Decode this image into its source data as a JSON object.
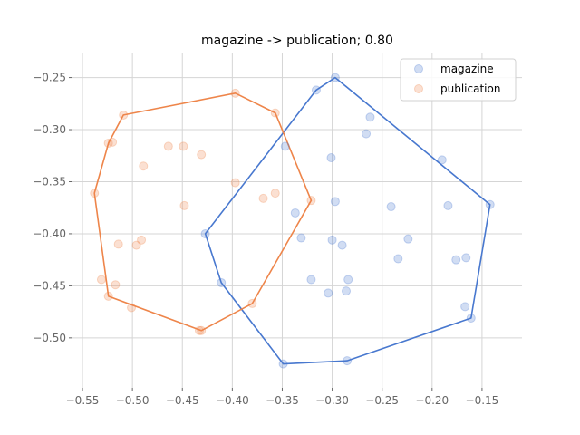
{
  "chart_data": {
    "type": "scatter",
    "title": "magazine -> publication; 0.80",
    "xlabel": "",
    "ylabel": "",
    "xlim": [
      -0.56,
      -0.11
    ],
    "ylim": [
      -0.548,
      -0.226
    ],
    "x_ticks": [
      -0.55,
      -0.5,
      -0.45,
      -0.4,
      -0.35,
      -0.3,
      -0.25,
      -0.2,
      -0.15
    ],
    "x_tick_labels": [
      "−0.55",
      "−0.50",
      "−0.45",
      "−0.40",
      "−0.35",
      "−0.30",
      "−0.25",
      "−0.20",
      "−0.15"
    ],
    "y_ticks": [
      -0.25,
      -0.3,
      -0.35,
      -0.4,
      -0.45,
      -0.5
    ],
    "y_tick_labels": [
      "−0.25",
      "−0.30",
      "−0.35",
      "−0.40",
      "−0.45",
      "−0.50"
    ],
    "grid": true,
    "legend_position": "top-right",
    "series": [
      {
        "name": "magazine",
        "color": "#4878cf",
        "points": [
          [
            -0.297,
            -0.25
          ],
          [
            -0.316,
            -0.262
          ],
          [
            -0.262,
            -0.288
          ],
          [
            -0.266,
            -0.304
          ],
          [
            -0.301,
            -0.327
          ],
          [
            -0.347,
            -0.316
          ],
          [
            -0.19,
            -0.329
          ],
          [
            -0.297,
            -0.369
          ],
          [
            -0.337,
            -0.38
          ],
          [
            -0.241,
            -0.374
          ],
          [
            -0.184,
            -0.373
          ],
          [
            -0.142,
            -0.372
          ],
          [
            -0.427,
            -0.4
          ],
          [
            -0.331,
            -0.404
          ],
          [
            -0.3,
            -0.406
          ],
          [
            -0.29,
            -0.411
          ],
          [
            -0.224,
            -0.405
          ],
          [
            -0.234,
            -0.424
          ],
          [
            -0.176,
            -0.425
          ],
          [
            -0.166,
            -0.423
          ],
          [
            -0.411,
            -0.447
          ],
          [
            -0.321,
            -0.444
          ],
          [
            -0.284,
            -0.444
          ],
          [
            -0.304,
            -0.457
          ],
          [
            -0.286,
            -0.455
          ],
          [
            -0.167,
            -0.47
          ],
          [
            -0.161,
            -0.481
          ],
          [
            -0.349,
            -0.525
          ],
          [
            -0.285,
            -0.522
          ]
        ],
        "hull": [
          [
            -0.297,
            -0.25
          ],
          [
            -0.142,
            -0.372
          ],
          [
            -0.161,
            -0.481
          ],
          [
            -0.285,
            -0.522
          ],
          [
            -0.349,
            -0.525
          ],
          [
            -0.411,
            -0.447
          ],
          [
            -0.427,
            -0.4
          ],
          [
            -0.316,
            -0.262
          ]
        ]
      },
      {
        "name": "publication",
        "color": "#ee854a",
        "points": [
          [
            -0.397,
            -0.265
          ],
          [
            -0.509,
            -0.286
          ],
          [
            -0.357,
            -0.284
          ],
          [
            -0.524,
            -0.313
          ],
          [
            -0.52,
            -0.312
          ],
          [
            -0.464,
            -0.316
          ],
          [
            -0.449,
            -0.316
          ],
          [
            -0.431,
            -0.324
          ],
          [
            -0.489,
            -0.335
          ],
          [
            -0.397,
            -0.351
          ],
          [
            -0.538,
            -0.361
          ],
          [
            -0.357,
            -0.361
          ],
          [
            -0.369,
            -0.366
          ],
          [
            -0.321,
            -0.368
          ],
          [
            -0.448,
            -0.373
          ],
          [
            -0.514,
            -0.41
          ],
          [
            -0.496,
            -0.411
          ],
          [
            -0.491,
            -0.406
          ],
          [
            -0.531,
            -0.444
          ],
          [
            -0.517,
            -0.449
          ],
          [
            -0.524,
            -0.46
          ],
          [
            -0.501,
            -0.471
          ],
          [
            -0.38,
            -0.467
          ],
          [
            -0.431,
            -0.493
          ],
          [
            -0.433,
            -0.493
          ]
        ],
        "hull": [
          [
            -0.397,
            -0.265
          ],
          [
            -0.357,
            -0.284
          ],
          [
            -0.321,
            -0.368
          ],
          [
            -0.38,
            -0.467
          ],
          [
            -0.431,
            -0.493
          ],
          [
            -0.524,
            -0.46
          ],
          [
            -0.538,
            -0.361
          ],
          [
            -0.524,
            -0.313
          ],
          [
            -0.509,
            -0.286
          ]
        ]
      }
    ]
  }
}
